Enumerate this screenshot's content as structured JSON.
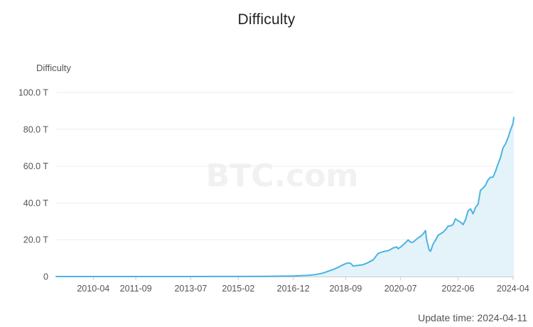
{
  "chart_data": {
    "type": "area",
    "title": "Difficulty",
    "ylabel": "Difficulty",
    "ylim": [
      0,
      100
    ],
    "y_unit": "T",
    "y_ticks": [
      {
        "value": 0,
        "label": "0"
      },
      {
        "value": 20,
        "label": "20.0 T"
      },
      {
        "value": 40,
        "label": "40.0 T"
      },
      {
        "value": 60,
        "label": "60.0 T"
      },
      {
        "value": 80,
        "label": "80.0 T"
      },
      {
        "value": 100,
        "label": "100.0 T"
      }
    ],
    "xlim": [
      "2009-01-03",
      "2024-04-11"
    ],
    "x_ticks": [
      "2010-04",
      "2011-09",
      "2013-07",
      "2015-02",
      "2016-12",
      "2018-09",
      "2020-07",
      "2022-06",
      "2024-04"
    ],
    "grid": true,
    "color": "#4ab4e2",
    "fill_color": "#e4f3fa",
    "series": [
      {
        "x": [
          "2009-01-03",
          "2010-04-01",
          "2011-09-01",
          "2013-07-01",
          "2014-06-01",
          "2015-02-01",
          "2016-01-01",
          "2016-12-01",
          "2017-06-01",
          "2017-09-01",
          "2017-12-01",
          "2018-02-01",
          "2018-04-01",
          "2018-06-01",
          "2018-08-01",
          "2018-09-01",
          "2018-10-01",
          "2018-11-01",
          "2018-12-01",
          "2019-02-01",
          "2019-04-01",
          "2019-06-01",
          "2019-08-01",
          "2019-10-01",
          "2019-12-01",
          "2020-02-01",
          "2020-04-01",
          "2020-05-15",
          "2020-06-01",
          "2020-07-01",
          "2020-08-01",
          "2020-09-01",
          "2020-10-01",
          "2020-11-01",
          "2020-12-01",
          "2021-01-01",
          "2021-02-01",
          "2021-03-01",
          "2021-04-01",
          "2021-05-01",
          "2021-05-15",
          "2021-06-15",
          "2021-07-01",
          "2021-08-01",
          "2021-09-01",
          "2021-10-01",
          "2021-12-01",
          "2022-01-01",
          "2022-02-01",
          "2022-03-01",
          "2022-04-01",
          "2022-05-01",
          "2022-06-01",
          "2022-07-01",
          "2022-08-01",
          "2022-09-01",
          "2022-10-01",
          "2022-11-01",
          "2022-12-01",
          "2023-01-01",
          "2023-02-01",
          "2023-03-01",
          "2023-04-01",
          "2023-05-01",
          "2023-06-01",
          "2023-07-01",
          "2023-08-01",
          "2023-09-01",
          "2023-10-01",
          "2023-11-01",
          "2023-12-01",
          "2024-01-01",
          "2024-02-01",
          "2024-03-01",
          "2024-04-01",
          "2024-04-11"
        ],
        "y": [
          0,
          0,
          0,
          0,
          0.02,
          0.05,
          0.1,
          0.3,
          0.7,
          1.1,
          1.9,
          2.9,
          3.8,
          5.0,
          6.4,
          7.0,
          7.4,
          7.2,
          5.7,
          6.1,
          6.4,
          7.6,
          9.0,
          12.5,
          13.5,
          14.0,
          15.5,
          16.1,
          15.1,
          16.0,
          17.2,
          18.5,
          19.9,
          18.6,
          18.6,
          19.9,
          21.0,
          21.8,
          23.1,
          25.0,
          19.9,
          14.4,
          13.7,
          17.6,
          19.9,
          22.4,
          24.1,
          25.5,
          27.4,
          27.5,
          28.2,
          31.3,
          30.3,
          29.6,
          28.2,
          30.9,
          35.6,
          36.8,
          34.1,
          37.6,
          39.4,
          46.8,
          48.0,
          49.5,
          52.4,
          53.9,
          53.9,
          57.1,
          61.0,
          64.7,
          69.9,
          72.0,
          75.5,
          79.5,
          83.1,
          86.4
        ]
      }
    ]
  },
  "update_label": "Update time:",
  "update_date": "2024-04-11",
  "watermark": "BTC.com"
}
